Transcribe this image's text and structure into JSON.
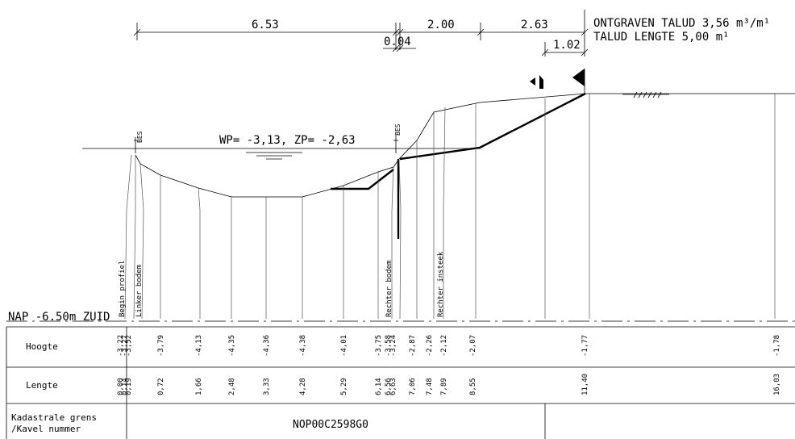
{
  "dimensions": {
    "d1": "6.53",
    "d2": "0.04",
    "d3": "2.00",
    "d4": "2.63",
    "d5": "1.02"
  },
  "notes": {
    "line1": "ONTGRAVEN TALUD 3,56 m³/m¹",
    "line2": "TALUD LENGTE 5,00 m¹"
  },
  "water": "WP= -3,13, ZP= -2,63",
  "markers": {
    "left": "BES",
    "right": "BES"
  },
  "reference": "NAP -6.50m ZUID",
  "points": [
    {
      "h": "-3,22",
      "l": "0,00"
    },
    {
      "h": "-3,27",
      "l": "0,14"
    },
    {
      "h": "-3,52",
      "l": "0,19"
    },
    {
      "h": "-3,79",
      "l": "0,72"
    },
    {
      "h": "-4,13",
      "l": "1,66"
    },
    {
      "h": "-4,35",
      "l": "2,48"
    },
    {
      "h": "-4,36",
      "l": "3,33"
    },
    {
      "h": "-4,38",
      "l": "4,28"
    },
    {
      "h": "-4,01",
      "l": "5,29"
    },
    {
      "h": "-3,75",
      "l": "6,14"
    },
    {
      "h": "-3,58",
      "l": "6,56"
    },
    {
      "h": "-3,24",
      "l": "6,63"
    },
    {
      "h": "-2,87",
      "l": "7,06"
    },
    {
      "h": "-2,26",
      "l": "7,48"
    },
    {
      "h": "-2,12",
      "l": "7,89"
    },
    {
      "h": "-2,07",
      "l": "8,55"
    },
    {
      "h": "-1,77",
      "l": "11,40"
    },
    {
      "h": "-1,78",
      "l": "16,03"
    }
  ],
  "point_labels": {
    "begin": "Begin profiel",
    "left_bed": "Linker bodem",
    "right_bed": "Rechter bodem",
    "right_edge": "Rechter insteek"
  },
  "table": {
    "row1": "Hoogte",
    "row2": "Lengte",
    "row3a": "Kadastrale grens",
    "row3b": "/Kavel nummer",
    "parcel": "NOP00C2598G0"
  }
}
